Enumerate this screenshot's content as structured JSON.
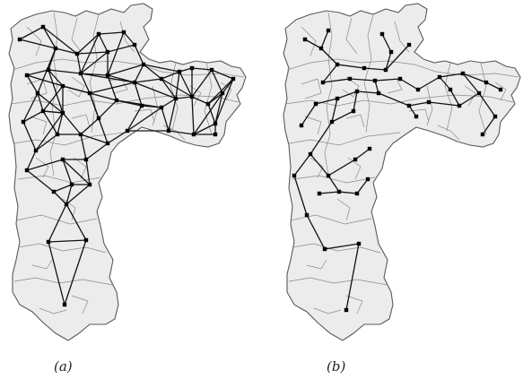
{
  "figure": {
    "panels": [
      {
        "id": "a",
        "label": "(a)",
        "graph": "dense-network"
      },
      {
        "id": "b",
        "label": "(b)",
        "graph": "tree-network"
      }
    ],
    "colors": {
      "region_fill": "#ececec",
      "border": "#5a5a5a",
      "district_line": "#8a8a8a",
      "edge": "#111111",
      "node": "#000000"
    }
  }
}
